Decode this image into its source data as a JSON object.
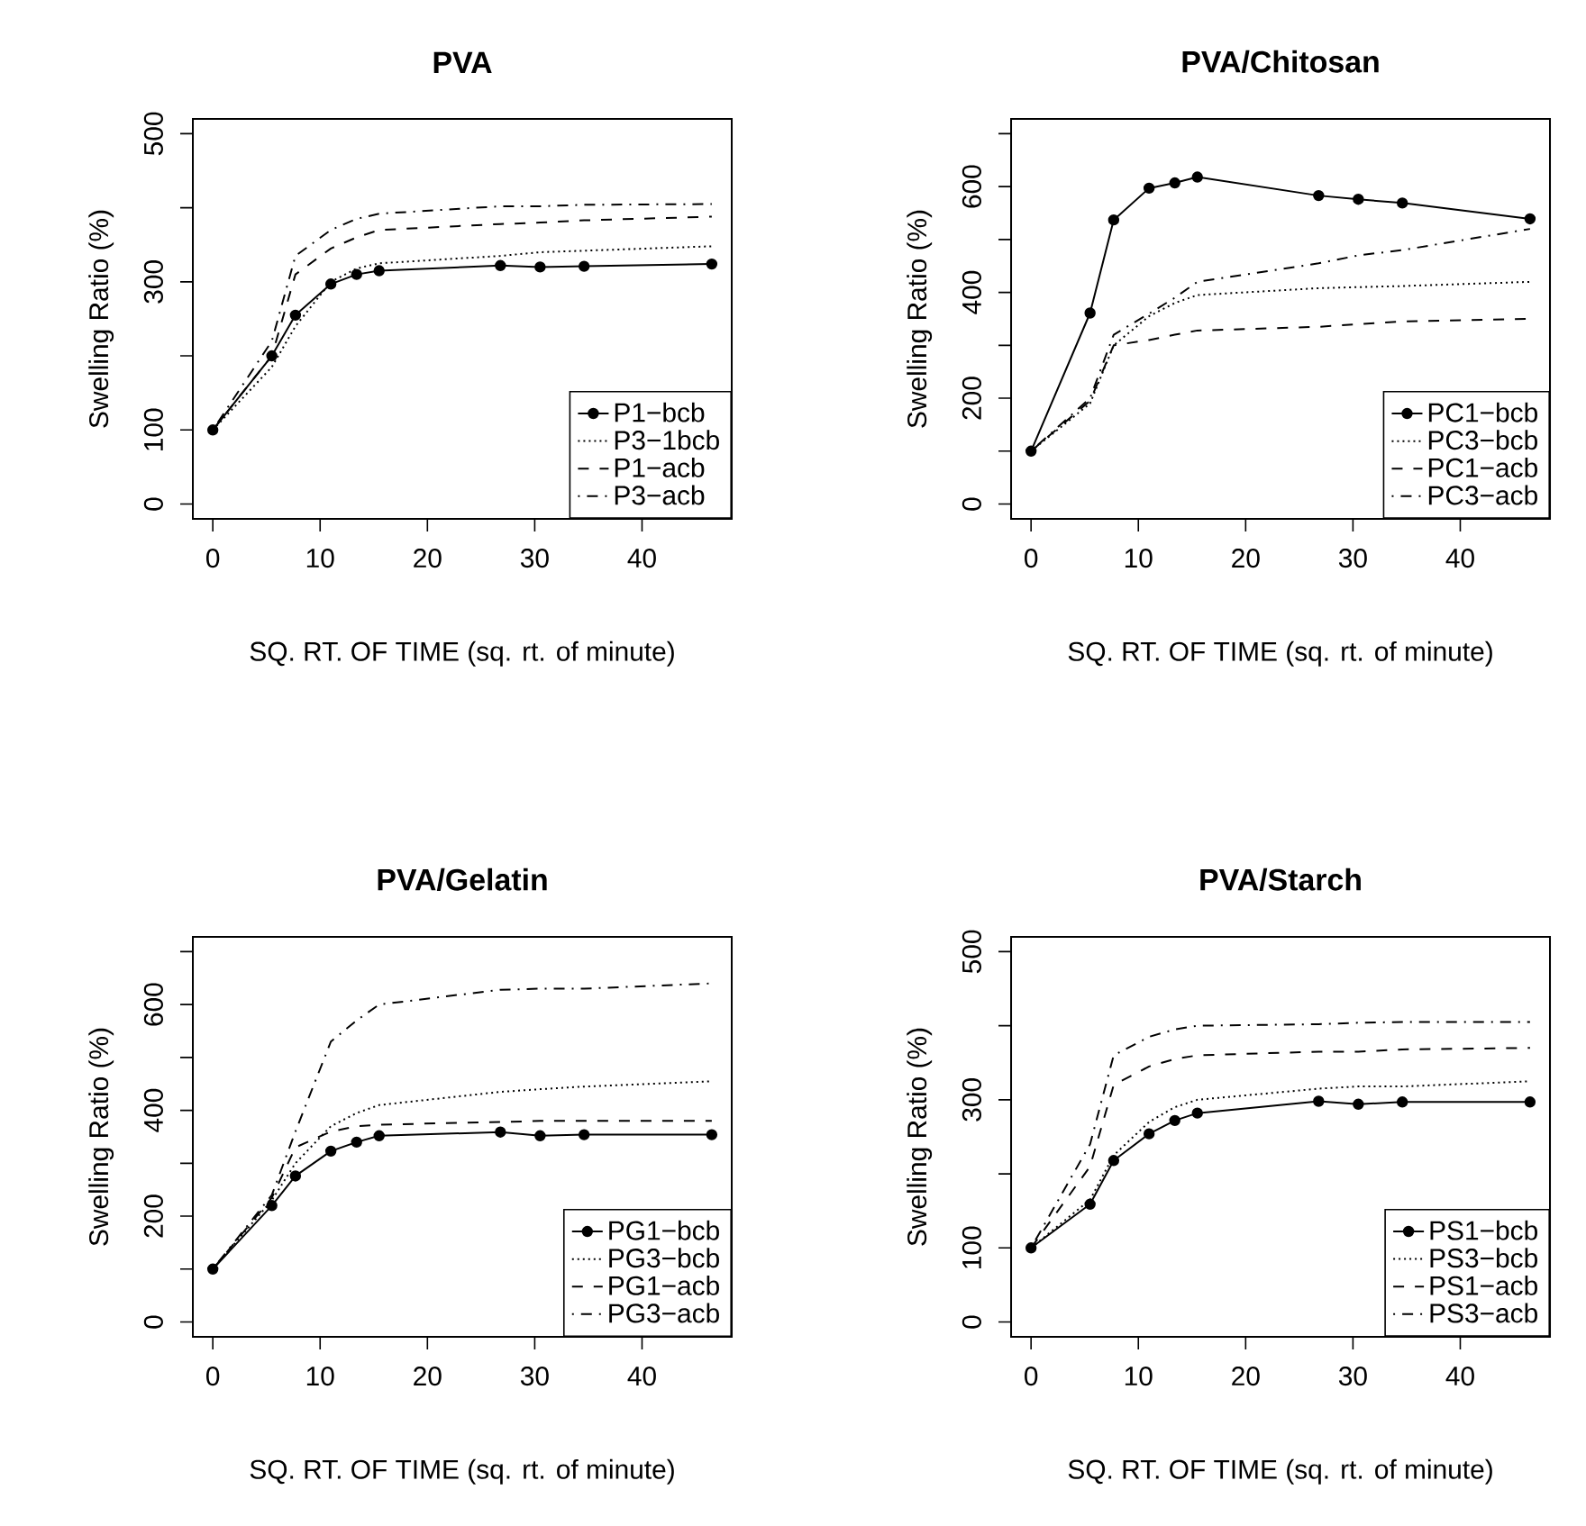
{
  "chart_data": [
    {
      "type": "line",
      "title": "PVA",
      "xlabel": "SQ. RT. OF TIME (sq. rt. of minute)",
      "ylabel": "Swelling Ratio (%)",
      "x": [
        0,
        5.5,
        7.7,
        11,
        13.4,
        15.5,
        26.8,
        30.5,
        34.6,
        46.5
      ],
      "xlim": [
        -1.86,
        48.36
      ],
      "xticks": [
        0,
        10,
        20,
        30,
        40
      ],
      "ylim": [
        -20,
        520
      ],
      "yticks": [
        0,
        100,
        {
          "value": 200,
          "label": null
        },
        300,
        {
          "value": 400,
          "label": null
        },
        500
      ],
      "legend": "bottom right",
      "series": [
        {
          "name": "P1−bcb",
          "color": "#000000",
          "marker": "circle",
          "line_style": "solid",
          "values": [
            100,
            200,
            255,
            297,
            310,
            315,
            322,
            320,
            321,
            324
          ]
        },
        {
          "name": "P3−1bcb",
          "color": "#000000",
          "marker": "none",
          "line_style": "dotted",
          "values": [
            100,
            185,
            240,
            300,
            318,
            325,
            335,
            340,
            342,
            348
          ]
        },
        {
          "name": "P1−acb",
          "color": "#000000",
          "marker": "none",
          "line_style": "dashed",
          "values": [
            100,
            200,
            310,
            345,
            360,
            370,
            378,
            380,
            383,
            388
          ]
        },
        {
          "name": "P3−acb",
          "color": "#000000",
          "marker": "none",
          "line_style": "dashdot",
          "values": [
            100,
            220,
            335,
            370,
            385,
            392,
            402,
            402,
            404,
            405
          ]
        }
      ]
    },
    {
      "type": "line",
      "title": "PVA/Chitosan",
      "xlabel": "SQ. RT. OF TIME (sq. rt. of minute)",
      "ylabel": "Swelling Ratio (%)",
      "x": [
        0,
        5.5,
        7.7,
        11,
        13.4,
        15.5,
        26.8,
        30.5,
        34.6,
        46.5
      ],
      "xlim": [
        -1.86,
        48.36
      ],
      "xticks": [
        0,
        10,
        20,
        30,
        40
      ],
      "ylim": [
        -28,
        728
      ],
      "yticks": [
        0,
        {
          "value": 100,
          "label": null
        },
        200,
        {
          "value": 300,
          "label": null
        },
        400,
        {
          "value": 500,
          "label": null
        },
        600,
        {
          "value": 700,
          "label": null
        }
      ],
      "legend": "bottom right",
      "series": [
        {
          "name": "PC1−bcb",
          "color": "#000000",
          "marker": "circle",
          "line_style": "solid",
          "values": [
            100,
            361,
            537,
            597,
            607,
            618,
            583,
            576,
            569,
            539
          ]
        },
        {
          "name": "PC3−bcb",
          "color": "#000000",
          "marker": "none",
          "line_style": "dotted",
          "values": [
            100,
            190,
            300,
            355,
            380,
            395,
            408,
            410,
            412,
            420
          ]
        },
        {
          "name": "PC1−acb",
          "color": "#000000",
          "marker": "none",
          "line_style": "dashed",
          "values": [
            100,
            195,
            300,
            310,
            320,
            328,
            335,
            340,
            345,
            350
          ]
        },
        {
          "name": "PC3−acb",
          "color": "#000000",
          "marker": "none",
          "line_style": "dashdot",
          "values": [
            100,
            200,
            320,
            360,
            390,
            420,
            455,
            470,
            480,
            520
          ]
        }
      ]
    },
    {
      "type": "line",
      "title": "PVA/Gelatin",
      "xlabel": "SQ. RT. OF TIME (sq. rt. of minute)",
      "ylabel": "Swelling Ratio (%)",
      "x": [
        0,
        5.5,
        7.7,
        11,
        13.4,
        15.5,
        26.8,
        30.5,
        34.6,
        46.5
      ],
      "xlim": [
        -1.86,
        48.36
      ],
      "xticks": [
        0,
        10,
        20,
        30,
        40
      ],
      "ylim": [
        -28,
        728
      ],
      "yticks": [
        0,
        {
          "value": 100,
          "label": null
        },
        200,
        {
          "value": 300,
          "label": null
        },
        400,
        {
          "value": 500,
          "label": null
        },
        600,
        {
          "value": 700,
          "label": null
        }
      ],
      "legend": "bottom right",
      "series": [
        {
          "name": "PG1−bcb",
          "color": "#000000",
          "marker": "circle",
          "line_style": "solid",
          "values": [
            100,
            220,
            276,
            323,
            340,
            352,
            359,
            352,
            354,
            354
          ]
        },
        {
          "name": "PG3−bcb",
          "color": "#000000",
          "marker": "none",
          "line_style": "dotted",
          "values": [
            100,
            230,
            300,
            370,
            395,
            410,
            435,
            440,
            445,
            455
          ]
        },
        {
          "name": "PG1−acb",
          "color": "#000000",
          "marker": "none",
          "line_style": "dashed",
          "values": [
            100,
            235,
            330,
            360,
            370,
            373,
            378,
            380,
            380,
            380
          ]
        },
        {
          "name": "PG3−acb",
          "color": "#000000",
          "marker": "none",
          "line_style": "dashdot",
          "values": [
            100,
            240,
            360,
            530,
            570,
            600,
            628,
            630,
            630,
            640
          ]
        }
      ]
    },
    {
      "type": "line",
      "title": "PVA/Starch",
      "xlabel": "SQ. RT. OF TIME (sq. rt. of minute)",
      "ylabel": "Swelling Ratio (%)",
      "x": [
        0,
        5.5,
        7.7,
        11,
        13.4,
        15.5,
        26.8,
        30.5,
        34.6,
        46.5
      ],
      "xlim": [
        -1.86,
        48.36
      ],
      "xticks": [
        0,
        10,
        20,
        30,
        40
      ],
      "ylim": [
        -20,
        520
      ],
      "yticks": [
        0,
        100,
        {
          "value": 200,
          "label": null
        },
        300,
        {
          "value": 400,
          "label": null
        },
        500
      ],
      "legend": "bottom right",
      "series": [
        {
          "name": "PS1−bcb",
          "color": "#000000",
          "marker": "circle",
          "line_style": "solid",
          "values": [
            100,
            159,
            218,
            254,
            272,
            282,
            298,
            294,
            297,
            297
          ]
        },
        {
          "name": "PS3−bcb",
          "color": "#000000",
          "marker": "none",
          "line_style": "dotted",
          "values": [
            100,
            165,
            225,
            270,
            290,
            300,
            315,
            318,
            318,
            325
          ]
        },
        {
          "name": "PS1−acb",
          "color": "#000000",
          "marker": "none",
          "line_style": "dashed",
          "values": [
            100,
            210,
            320,
            345,
            355,
            360,
            365,
            365,
            368,
            370
          ]
        },
        {
          "name": "PS3−acb",
          "color": "#000000",
          "marker": "none",
          "line_style": "dashdot",
          "values": [
            100,
            240,
            360,
            385,
            395,
            400,
            402,
            404,
            405,
            405
          ]
        }
      ]
    }
  ]
}
